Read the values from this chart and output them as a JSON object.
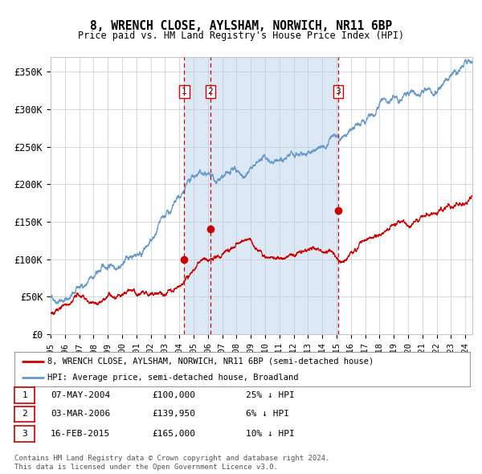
{
  "title": "8, WRENCH CLOSE, AYLSHAM, NORWICH, NR11 6BP",
  "subtitle": "Price paid vs. HM Land Registry's House Price Index (HPI)",
  "legend_line1": "8, WRENCH CLOSE, AYLSHAM, NORWICH, NR11 6BP (semi-detached house)",
  "legend_line2": "HPI: Average price, semi-detached house, Broadland",
  "footnote1": "Contains HM Land Registry data © Crown copyright and database right 2024.",
  "footnote2": "This data is licensed under the Open Government Licence v3.0.",
  "sale_color": "#cc0000",
  "hpi_color": "#6699cc",
  "plot_bg": "#ffffff",
  "grid_color": "#c0c8d8",
  "vline_color": "#cc0000",
  "vband_color": "#dce9f5",
  "sales": [
    {
      "label": "1",
      "date_num": 2004.35,
      "price": 100000,
      "note": "07-MAY-2004",
      "pct": "25%",
      "dir": "↓"
    },
    {
      "label": "2",
      "date_num": 2006.17,
      "price": 139950,
      "note": "03-MAR-2006",
      "pct": "6%",
      "dir": "↓"
    },
    {
      "label": "3",
      "date_num": 2015.12,
      "price": 165000,
      "note": "16-FEB-2015",
      "pct": "10%",
      "dir": "↓"
    }
  ],
  "ylim": [
    0,
    370000
  ],
  "xlim": [
    1995,
    2024.5
  ],
  "yticks": [
    0,
    50000,
    100000,
    150000,
    200000,
    250000,
    300000,
    350000
  ],
  "ytick_labels": [
    "£0",
    "£50K",
    "£100K",
    "£150K",
    "£200K",
    "£250K",
    "£300K",
    "£350K"
  ],
  "xticks": [
    1995,
    1996,
    1997,
    1998,
    1999,
    2000,
    2001,
    2002,
    2003,
    2004,
    2005,
    2006,
    2007,
    2008,
    2009,
    2010,
    2011,
    2012,
    2013,
    2014,
    2015,
    2016,
    2017,
    2018,
    2019,
    2020,
    2021,
    2022,
    2023,
    2024
  ]
}
